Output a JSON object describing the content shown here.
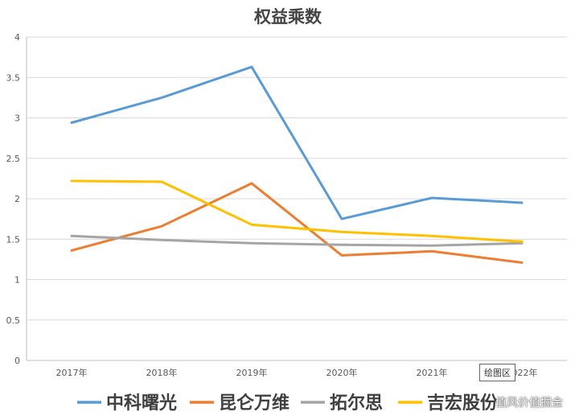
{
  "chart_data": {
    "type": "line",
    "title": "权益乘数",
    "categories": [
      "2017年",
      "2018年",
      "2019年",
      "2020年",
      "2021年",
      "2022年"
    ],
    "ylim": [
      0,
      4
    ],
    "yticks": [
      "0",
      "0.5",
      "1",
      "1.5",
      "2",
      "2.5",
      "3",
      "3.5",
      "4"
    ],
    "grid": true,
    "legend_position": "bottom",
    "series": [
      {
        "name": "中科曙光",
        "color": "#5B9BD5",
        "values": [
          2.94,
          3.25,
          3.63,
          1.75,
          2.01,
          1.95
        ]
      },
      {
        "name": "昆仑万维",
        "color": "#ED7D31",
        "values": [
          1.36,
          1.66,
          2.19,
          1.3,
          1.35,
          1.21
        ]
      },
      {
        "name": "拓尔思",
        "color": "#A5A5A5",
        "values": [
          1.54,
          1.49,
          1.45,
          1.43,
          1.42,
          1.45
        ]
      },
      {
        "name": "吉宏股份",
        "color": "#FFC000",
        "values": [
          2.22,
          2.21,
          1.68,
          1.59,
          1.54,
          1.47
        ]
      }
    ]
  },
  "tooltip": "绘图区",
  "watermark": "值风价值掘金"
}
